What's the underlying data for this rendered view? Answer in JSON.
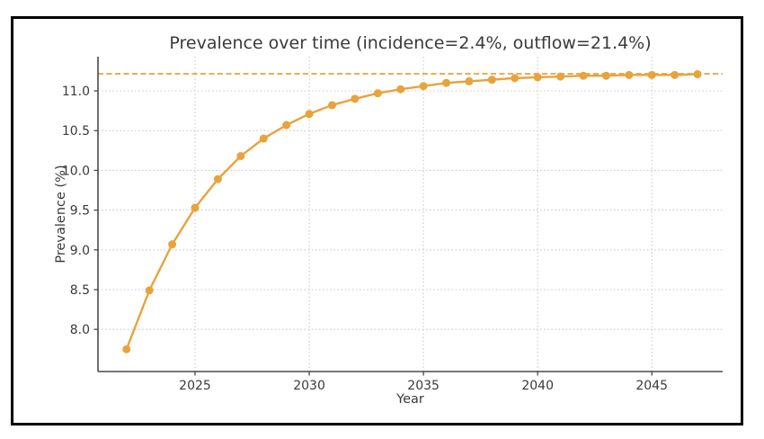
{
  "window": {
    "background": "#ffffff",
    "frame_border_color": "#000000"
  },
  "chart_data": {
    "type": "line",
    "title": "Prevalence over time (incidence=2.4%, outflow=21.4%)",
    "xlabel": "Year",
    "ylabel": "Prevalence (%)",
    "x": [
      2022,
      2023,
      2024,
      2025,
      2026,
      2027,
      2028,
      2029,
      2030,
      2031,
      2032,
      2033,
      2034,
      2035,
      2036,
      2037,
      2038,
      2039,
      2040,
      2041,
      2042,
      2043,
      2044,
      2045,
      2046,
      2047
    ],
    "series": [
      {
        "name": "prevalence",
        "values": [
          7.75,
          8.49,
          9.07,
          9.53,
          9.89,
          10.18,
          10.4,
          10.57,
          10.71,
          10.82,
          10.9,
          10.97,
          11.02,
          11.06,
          11.1,
          11.12,
          11.14,
          11.16,
          11.17,
          11.18,
          11.19,
          11.19,
          11.2,
          11.2,
          11.2,
          11.21
        ],
        "color": "#E8A33C",
        "marker": "circle"
      }
    ],
    "asymptote": {
      "value": 11.215,
      "style": "dashed",
      "color": "#E8A33C"
    },
    "xticks": [
      2025,
      2030,
      2035,
      2040,
      2045
    ],
    "yticks": [
      8.0,
      8.5,
      9.0,
      9.5,
      10.0,
      10.5,
      11.0
    ],
    "xlim": [
      2020.75,
      2048.1
    ],
    "ylim": [
      7.47,
      11.43
    ],
    "grid": true,
    "grid_style": "dotted",
    "legend_position": "none",
    "colors": {
      "grid": "#c9c9c9",
      "spine": "#4a4a4a",
      "text": "#3a3a3a"
    }
  }
}
